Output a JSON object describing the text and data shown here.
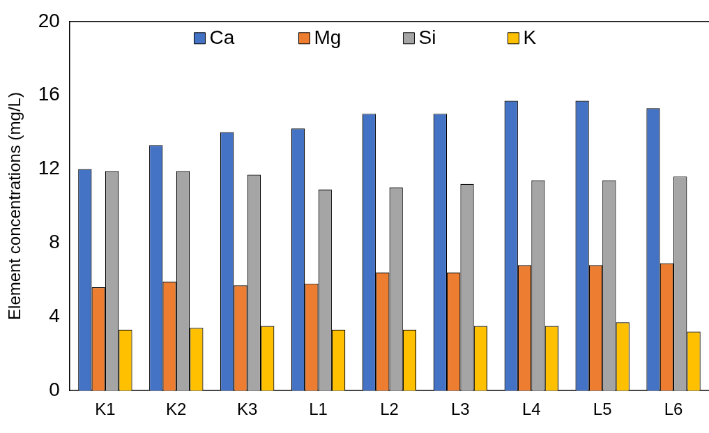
{
  "chart_data": {
    "type": "bar",
    "ylabel": "Element concentrations (mg/L)",
    "categories": [
      "K1",
      "K2",
      "K3",
      "L1",
      "L2",
      "L3",
      "L4",
      "L5",
      "L6"
    ],
    "series": [
      {
        "name": "Ca",
        "color": "#4472c4",
        "values": [
          12.0,
          13.3,
          14.0,
          14.2,
          15.0,
          15.0,
          15.7,
          15.7,
          15.3
        ]
      },
      {
        "name": "Mg",
        "color": "#ed7d31",
        "values": [
          5.6,
          5.9,
          5.7,
          5.8,
          6.4,
          6.4,
          6.8,
          6.8,
          6.9
        ]
      },
      {
        "name": "Si",
        "color": "#a5a5a5",
        "values": [
          11.9,
          11.9,
          11.7,
          10.9,
          11.0,
          11.2,
          11.4,
          11.4,
          11.6
        ]
      },
      {
        "name": "K",
        "color": "#ffc000",
        "values": [
          3.3,
          3.4,
          3.5,
          3.3,
          3.3,
          3.5,
          3.5,
          3.7,
          3.2
        ]
      }
    ],
    "ylim": [
      0,
      20
    ],
    "yticks": [
      0,
      4,
      8,
      12,
      16,
      20
    ],
    "grid": false,
    "legend": "top"
  }
}
